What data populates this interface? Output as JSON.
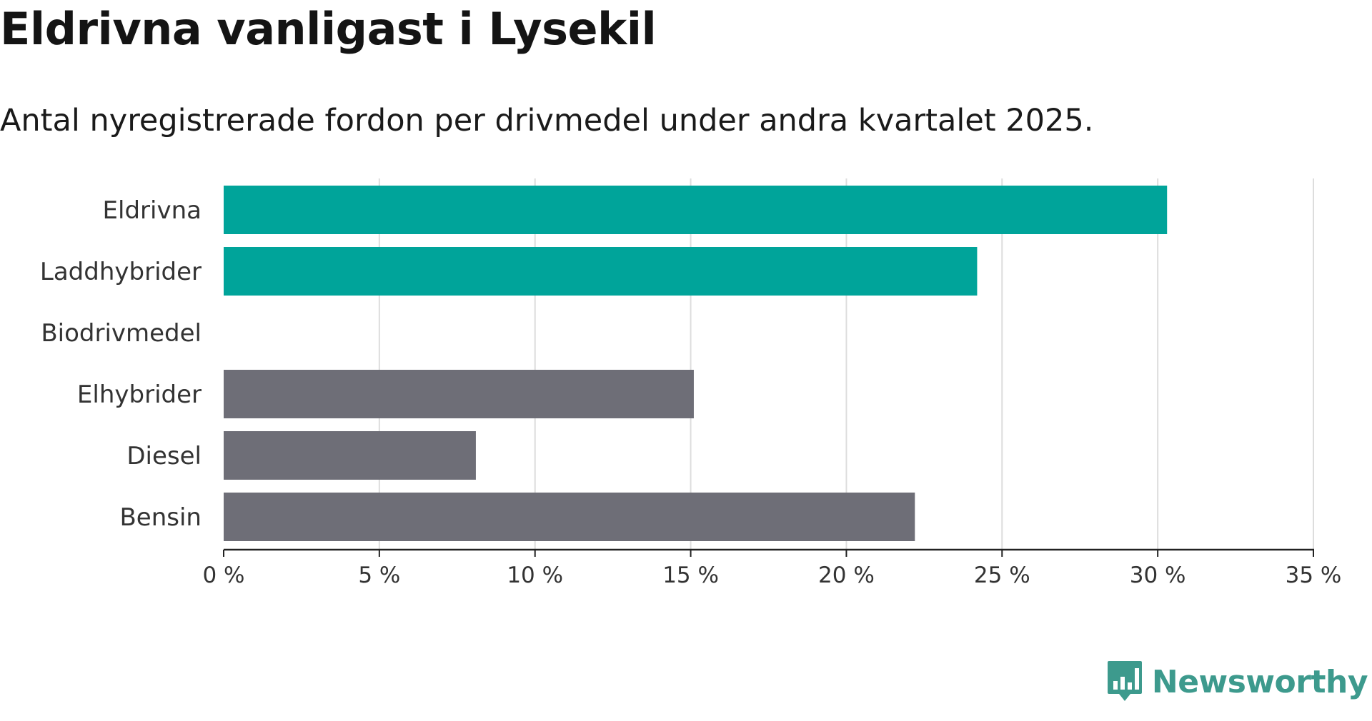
{
  "header": {
    "title": "Eldrivna vanligast i Lysekil",
    "subtitle": "Antal nyregistrerade fordon per drivmedel under andra kvartalet 2025."
  },
  "brand": {
    "name": "Newsworthy",
    "logo_icon": "newsworthy-logo-icon",
    "color": "#3d9a8d"
  },
  "chart_data": {
    "type": "bar",
    "orientation": "horizontal",
    "categories": [
      "Eldrivna",
      "Laddhybrider",
      "Biodrivmedel",
      "Elhybrider",
      "Diesel",
      "Bensin"
    ],
    "values": [
      30.3,
      24.2,
      0,
      15.1,
      8.1,
      22.2
    ],
    "highlight": [
      true,
      true,
      false,
      false,
      false,
      false
    ],
    "colors": {
      "highlight": "#00a49a",
      "default": "#6e6e77",
      "grid": "#dddddd",
      "axis": "#222222"
    },
    "xlim": [
      0,
      35
    ],
    "ticks": [
      0,
      5,
      10,
      15,
      20,
      25,
      30,
      35
    ],
    "tick_labels": [
      "0 %",
      "5 %",
      "10 %",
      "15 %",
      "20 %",
      "25 %",
      "30 %",
      "35 %"
    ],
    "grid": true,
    "title": "Eldrivna vanligast i Lysekil",
    "subtitle": "Antal nyregistrerade fordon per drivmedel under andra kvartalet 2025."
  }
}
